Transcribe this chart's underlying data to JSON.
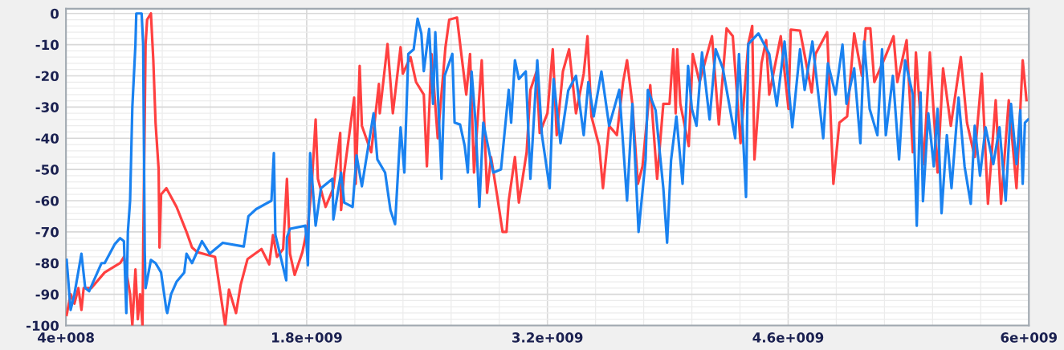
{
  "chart_data": {
    "type": "line",
    "xlim": [
      400000000.0,
      6000000000.0
    ],
    "xticks": [
      {
        "value": 400000000.0,
        "label": "4e+008"
      },
      {
        "value": 1800000000.0,
        "label": "1.8e+009"
      },
      {
        "value": 3200000000.0,
        "label": "3.2e+009"
      },
      {
        "value": 4600000000.0,
        "label": "4.6e+009"
      },
      {
        "value": 6000000000.0,
        "label": "6e+009"
      }
    ],
    "ylim": [
      -100,
      1.5
    ],
    "yticks": [
      0,
      -10,
      -20,
      -30,
      -40,
      -50,
      -60,
      -70,
      -80,
      -90,
      -100
    ],
    "grid": true,
    "marker": "none",
    "line_style": "solid",
    "series": [
      {
        "color": "#ff4040",
        "x": [
          404000000.0,
          427000000.0,
          449000000.0,
          472000000.0,
          490000000.0,
          503000000.0,
          548000000.0,
          625000000.0,
          715000000.0,
          737000000.0,
          773000000.0,
          786000000.0,
          804000000.0,
          818000000.0,
          831000000.0,
          845000000.0,
          849000000.0,
          863000000.0,
          872000000.0,
          894000000.0,
          908000000.0,
          921000000.0,
          939000000.0,
          944000000.0,
          953000000.0,
          984000000.0,
          1043000000.0,
          1101000000.0,
          1133000000.0,
          1164000000.0,
          1267000000.0,
          1326000000.0,
          1348000000.0,
          1389000000.0,
          1416000000.0,
          1456000000.0,
          1537000000.0,
          1582000000.0,
          1604000000.0,
          1627000000.0,
          1663000000.0,
          1685000000.0,
          1703000000.0,
          1730000000.0,
          1775000000.0,
          1807000000.0,
          1829000000.0,
          1852000000.0,
          1865000000.0,
          1910000000.0,
          1955000000.0,
          1995000000.0,
          2000000000.0,
          2018000000.0,
          2076000000.0,
          2085000000.0,
          2108000000.0,
          2121000000.0,
          2175000000.0,
          2220000000.0,
          2225000000.0,
          2270000000.0,
          2301000000.0,
          2346000000.0,
          2359000000.0,
          2404000000.0,
          2436000000.0,
          2481000000.0,
          2499000000.0,
          2526000000.0,
          2562000000.0,
          2607000000.0,
          2629000000.0,
          2674000000.0,
          2696000000.0,
          2728000000.0,
          2750000000.0,
          2773000000.0,
          2818000000.0,
          2849000000.0,
          2872000000.0,
          2908000000.0,
          2939000000.0,
          2962000000.0,
          2975000000.0,
          3011000000.0,
          3034000000.0,
          3079000000.0,
          3101000000.0,
          3137000000.0,
          3155000000.0,
          3200000000.0,
          3231000000.0,
          3254000000.0,
          3290000000.0,
          3326000000.0,
          3366000000.0,
          3411000000.0,
          3433000000.0,
          3456000000.0,
          3501000000.0,
          3523000000.0,
          3559000000.0,
          3604000000.0,
          3640000000.0,
          3663000000.0,
          3694000000.0,
          3726000000.0,
          3753000000.0,
          3798000000.0,
          3838000000.0,
          3874000000.0,
          3910000000.0,
          3932000000.0,
          3946000000.0,
          3955000000.0,
          3973000000.0,
          4022000000.0,
          4045000000.0,
          4085000000.0,
          4157000000.0,
          4197000000.0,
          4242000000.0,
          4278000000.0,
          4323000000.0,
          4368000000.0,
          4391000000.0,
          4404000000.0,
          4445000000.0,
          4472000000.0,
          4490000000.0,
          4557000000.0,
          4602000000.0,
          4615000000.0,
          4669000000.0,
          4737000000.0,
          4759000000.0,
          4827000000.0,
          4863000000.0,
          4898000000.0,
          4943000000.0,
          4984000000.0,
          5029000000.0,
          5051000000.0,
          5078000000.0,
          5101000000.0,
          5164000000.0,
          5213000000.0,
          5235000000.0,
          5289000000.0,
          5325000000.0,
          5343000000.0,
          5388000000.0,
          5424000000.0,
          5469000000.0,
          5501000000.0,
          5546000000.0,
          5604000000.0,
          5640000000.0,
          5685000000.0,
          5726000000.0,
          5762000000.0,
          5807000000.0,
          5838000000.0,
          5883000000.0,
          5928000000.0,
          5964000000.0,
          5986000000.0
        ],
        "values": [
          -96.6,
          -90,
          -93,
          -88,
          -95,
          -88,
          -88,
          -83,
          -80,
          -78,
          -90,
          -100,
          -82,
          -98,
          -90,
          -100,
          -76,
          -10,
          -2,
          0,
          -15,
          -35,
          -50,
          -75,
          -58,
          -56,
          -62,
          -70,
          -75,
          -76.5,
          -78,
          -100,
          -88.5,
          -96,
          -87,
          -78.7,
          -75.5,
          -80.4,
          -71,
          -78,
          -75.5,
          -53,
          -77,
          -83.8,
          -76.5,
          -68,
          -55.4,
          -34,
          -53,
          -62,
          -56,
          -38.3,
          -63,
          -51,
          -27,
          -54.6,
          -16.8,
          -36,
          -44.5,
          -22.6,
          -32,
          -9.8,
          -32,
          -10.8,
          -19.3,
          -14,
          -22,
          -26,
          -49,
          -13,
          -40,
          -10.8,
          -2,
          -1.3,
          -11.5,
          -26,
          -13,
          -51,
          -15,
          -57.5,
          -46,
          -58.5,
          -70,
          -70,
          -60,
          -46,
          -60.6,
          -44.5,
          -24.5,
          -18.6,
          -38.3,
          -32,
          -11.5,
          -39,
          -18.6,
          -11.5,
          -32,
          -19.3,
          -7.3,
          -33,
          -42.5,
          -56,
          -36,
          -39,
          -22,
          -15,
          -29,
          -54.6,
          -49,
          -23,
          -53,
          -29,
          -29,
          -11.5,
          -32,
          -11.5,
          -29,
          -42.5,
          -13,
          -22,
          -7.3,
          -35.6,
          -4.8,
          -7.3,
          -41.6,
          -9.8,
          -4,
          -46.8,
          -16,
          -8.6,
          -26,
          -7.3,
          -30.6,
          -5.2,
          -5.5,
          -25.3,
          -13,
          -6,
          -54.6,
          -35,
          -33,
          -6.4,
          -20,
          -4.8,
          -4.8,
          -22,
          -14,
          -7.3,
          -22,
          -8.6,
          -44.5,
          -12.5,
          -48.3,
          -12.5,
          -51,
          -17.6,
          -36,
          -14,
          -35,
          -46,
          -19.3,
          -61,
          -27.8,
          -61,
          -27.8,
          -56,
          -15,
          -27.8
        ]
      },
      {
        "color": "#1a82f0",
        "x": [
          404000000.0,
          427000000.0,
          449000000.0,
          490000000.0,
          512000000.0,
          535000000.0,
          607000000.0,
          625000000.0,
          683000000.0,
          715000000.0,
          737000000.0,
          751000000.0,
          760000000.0,
          773000000.0,
          786000000.0,
          804000000.0,
          809000000.0,
          840000000.0,
          849000000.0,
          858000000.0,
          863000000.0,
          894000000.0,
          921000000.0,
          953000000.0,
          984000000.0,
          989000000.0,
          1011000000.0,
          1043000000.0,
          1088000000.0,
          1101000000.0,
          1133000000.0,
          1191000000.0,
          1236000000.0,
          1312000000.0,
          1434000000.0,
          1461000000.0,
          1506000000.0,
          1595000000.0,
          1609000000.0,
          1618000000.0,
          1681000000.0,
          1685000000.0,
          1703000000.0,
          1793000000.0,
          1807000000.0,
          1820000000.0,
          1852000000.0,
          1883000000.0,
          1950000000.0,
          1955000000.0,
          2000000000.0,
          2018000000.0,
          2067000000.0,
          2090000000.0,
          2121000000.0,
          2189000000.0,
          2211000000.0,
          2256000000.0,
          2287000000.0,
          2314000000.0,
          2346000000.0,
          2368000000.0,
          2391000000.0,
          2422000000.0,
          2445000000.0,
          2467000000.0,
          2481000000.0,
          2512000000.0,
          2535000000.0,
          2548000000.0,
          2584000000.0,
          2602000000.0,
          2647000000.0,
          2660000000.0,
          2692000000.0,
          2719000000.0,
          2737000000.0,
          2759000000.0,
          2782000000.0,
          2804000000.0,
          2827000000.0,
          2885000000.0,
          2930000000.0,
          2975000000.0,
          2989000000.0,
          3011000000.0,
          3034000000.0,
          3074000000.0,
          3101000000.0,
          3141000000.0,
          3168000000.0,
          3213000000.0,
          3236000000.0,
          3276000000.0,
          3321000000.0,
          3366000000.0,
          3411000000.0,
          3438000000.0,
          3469000000.0,
          3514000000.0,
          3559000000.0,
          3618000000.0,
          3663000000.0,
          3694000000.0,
          3730000000.0,
          3771000000.0,
          3784000000.0,
          3829000000.0,
          3874000000.0,
          3896000000.0,
          3919000000.0,
          3950000000.0,
          3986000000.0,
          4018000000.0,
          4040000000.0,
          4067000000.0,
          4099000000.0,
          4143000000.0,
          4179000000.0,
          4220000000.0,
          4278000000.0,
          4292000000.0,
          4314000000.0,
          4355000000.0,
          4368000000.0,
          4427000000.0,
          4490000000.0,
          4534000000.0,
          4579000000.0,
          4624000000.0,
          4669000000.0,
          4696000000.0,
          4741000000.0,
          4804000000.0,
          4831000000.0,
          4876000000.0,
          4916000000.0,
          4939000000.0,
          4984000000.0,
          5020000000.0,
          5042000000.0,
          5074000000.0,
          5119000000.0,
          5146000000.0,
          5168000000.0,
          5209000000.0,
          5245000000.0,
          5280000000.0,
          5325000000.0,
          5348000000.0,
          5370000000.0,
          5384000000.0,
          5415000000.0,
          5447000000.0,
          5469000000.0,
          5492000000.0,
          5523000000.0,
          5550000000.0,
          5591000000.0,
          5626000000.0,
          5662000000.0,
          5685000000.0,
          5716000000.0,
          5748000000.0,
          5793000000.0,
          5829000000.0,
          5865000000.0,
          5896000000.0,
          5928000000.0,
          5950000000.0,
          5964000000.0,
          5977000000.0,
          5995000000.0
        ],
        "values": [
          -79,
          -95,
          -90,
          -77,
          -88,
          -89,
          -80,
          -80,
          -74,
          -72,
          -73,
          -96,
          -70,
          -60,
          -30,
          -10,
          0,
          0,
          -10,
          -76,
          -88,
          -79,
          -80,
          -83,
          -95,
          -96,
          -90,
          -86,
          -83,
          -77,
          -80,
          -73,
          -77,
          -73.5,
          -74.7,
          -65,
          -62.7,
          -60,
          -44.7,
          -71,
          -85.5,
          -71.7,
          -69,
          -68,
          -80.7,
          -44.7,
          -68,
          -56,
          -53,
          -66,
          -51,
          -60.6,
          -62,
          -45.5,
          -55.4,
          -32,
          -46.8,
          -51,
          -63,
          -67.5,
          -36.5,
          -51,
          -13,
          -11.5,
          -1.7,
          -6.5,
          -18.5,
          -5,
          -29,
          -6,
          -53,
          -20,
          -13,
          -35,
          -35.6,
          -42.5,
          -51,
          -18.6,
          -35,
          -62,
          -35,
          -51,
          -50,
          -24.5,
          -35,
          -15,
          -21,
          -18.6,
          -53,
          -15,
          -39,
          -56,
          -21,
          -41.6,
          -24.7,
          -20,
          -39,
          -22,
          -33,
          -18.6,
          -36,
          -24.5,
          -60,
          -29,
          -70,
          -46.8,
          -24.5,
          -31,
          -56,
          -73.5,
          -47,
          -33,
          -54.6,
          -16.8,
          -30.6,
          -36,
          -12.5,
          -34,
          -11.5,
          -17.6,
          -35.6,
          -40,
          -13,
          -58.8,
          -9.8,
          -6.4,
          -13,
          -29.6,
          -9,
          -36.5,
          -11.5,
          -24.5,
          -9,
          -40,
          -16,
          -26,
          -10,
          -29,
          -17.6,
          -41.6,
          -9,
          -30.6,
          -39,
          -11.5,
          -39,
          -20,
          -46.8,
          -15,
          -26,
          -68,
          -25.3,
          -60.2,
          -32,
          -49,
          -30.6,
          -64,
          -39,
          -56,
          -27,
          -49,
          -61,
          -36,
          -52,
          -36.5,
          -48.3,
          -36.5,
          -60,
          -29,
          -48.3,
          -31,
          -54.6,
          -35,
          -34
        ]
      }
    ]
  }
}
